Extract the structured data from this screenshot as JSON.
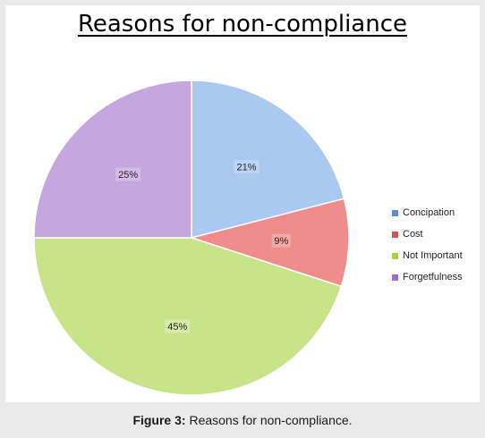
{
  "chart_data": {
    "type": "pie",
    "title": "Reasons for non-compliance",
    "categories": [
      "Concipation",
      "Cost",
      "Not Important",
      "Forgetfulness"
    ],
    "values": [
      21,
      9,
      45,
      25
    ],
    "labels": [
      "21%",
      "9%",
      "45%",
      "25%"
    ],
    "colors": [
      "#a9c9f0",
      "#ef8c8c",
      "#c8e489",
      "#c6a6de"
    ],
    "legend_markers": [
      "#5b8fcb",
      "#d15454",
      "#a6cf4a",
      "#9a74bd"
    ],
    "start_angle_deg": 0,
    "direction": "clockwise",
    "legend_position": "right"
  },
  "caption": {
    "label": "Figure 3:",
    "text": " Reasons for non-compliance."
  }
}
